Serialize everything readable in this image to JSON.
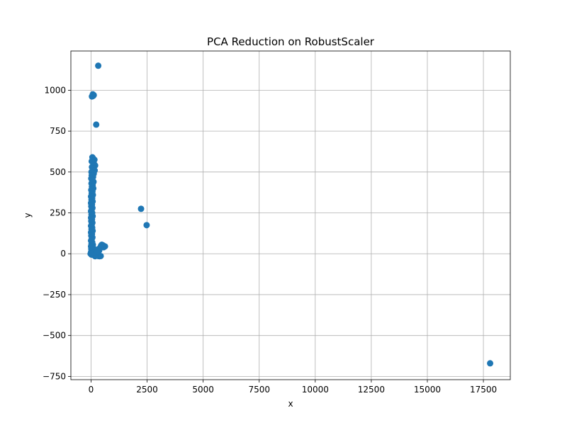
{
  "chart_data": {
    "type": "scatter",
    "title": "PCA Reduction on RobustScaler",
    "xlabel": "x",
    "ylabel": "y",
    "xlim": [
      -900,
      18700
    ],
    "ylim": [
      -770,
      1240
    ],
    "xticks": [
      0,
      2500,
      5000,
      7500,
      10000,
      12500,
      15000,
      17500
    ],
    "yticks": [
      -750,
      -500,
      -250,
      0,
      250,
      500,
      750,
      1000
    ],
    "xtick_labels": [
      "0",
      "2500",
      "5000",
      "7500",
      "10000",
      "12500",
      "15000",
      "17500"
    ],
    "ytick_labels": [
      "−750",
      "−500",
      "−250",
      "0",
      "250",
      "500",
      "750",
      "1000"
    ],
    "grid": true,
    "marker_color": "#1f77b4",
    "points": [
      {
        "x": 320,
        "y": 1150
      },
      {
        "x": 80,
        "y": 975
      },
      {
        "x": 120,
        "y": 970
      },
      {
        "x": 40,
        "y": 962
      },
      {
        "x": 90,
        "y": 965
      },
      {
        "x": 230,
        "y": 790
      },
      {
        "x": 60,
        "y": 590
      },
      {
        "x": 100,
        "y": 580
      },
      {
        "x": 150,
        "y": 575
      },
      {
        "x": 30,
        "y": 565
      },
      {
        "x": 80,
        "y": 560
      },
      {
        "x": 130,
        "y": 550
      },
      {
        "x": 180,
        "y": 540
      },
      {
        "x": 40,
        "y": 530
      },
      {
        "x": 100,
        "y": 520
      },
      {
        "x": 160,
        "y": 510
      },
      {
        "x": 20,
        "y": 500
      },
      {
        "x": 70,
        "y": 495
      },
      {
        "x": 120,
        "y": 490
      },
      {
        "x": 30,
        "y": 480
      },
      {
        "x": 90,
        "y": 470
      },
      {
        "x": 10,
        "y": 460
      },
      {
        "x": 60,
        "y": 450
      },
      {
        "x": 110,
        "y": 440
      },
      {
        "x": 20,
        "y": 430
      },
      {
        "x": 70,
        "y": 420
      },
      {
        "x": 40,
        "y": 410
      },
      {
        "x": 100,
        "y": 400
      },
      {
        "x": 10,
        "y": 390
      },
      {
        "x": 60,
        "y": 380
      },
      {
        "x": 30,
        "y": 370
      },
      {
        "x": 80,
        "y": 360
      },
      {
        "x": 0,
        "y": 350
      },
      {
        "x": 50,
        "y": 340
      },
      {
        "x": 20,
        "y": 330
      },
      {
        "x": 70,
        "y": 320
      },
      {
        "x": 0,
        "y": 310
      },
      {
        "x": 40,
        "y": 300
      },
      {
        "x": 10,
        "y": 290
      },
      {
        "x": 60,
        "y": 280
      },
      {
        "x": 30,
        "y": 270
      },
      {
        "x": 0,
        "y": 260
      },
      {
        "x": 50,
        "y": 250
      },
      {
        "x": 20,
        "y": 240
      },
      {
        "x": 70,
        "y": 230
      },
      {
        "x": 0,
        "y": 220
      },
      {
        "x": 40,
        "y": 210
      },
      {
        "x": 10,
        "y": 200
      },
      {
        "x": 60,
        "y": 190
      },
      {
        "x": 30,
        "y": 180
      },
      {
        "x": 0,
        "y": 170
      },
      {
        "x": 50,
        "y": 160
      },
      {
        "x": 20,
        "y": 150
      },
      {
        "x": 70,
        "y": 140
      },
      {
        "x": 0,
        "y": 130
      },
      {
        "x": 40,
        "y": 120
      },
      {
        "x": 10,
        "y": 110
      },
      {
        "x": 60,
        "y": 100
      },
      {
        "x": 30,
        "y": 90
      },
      {
        "x": 0,
        "y": 80
      },
      {
        "x": 50,
        "y": 70
      },
      {
        "x": 20,
        "y": 60
      },
      {
        "x": 80,
        "y": 55
      },
      {
        "x": 0,
        "y": 45
      },
      {
        "x": 40,
        "y": 40
      },
      {
        "x": 100,
        "y": 35
      },
      {
        "x": 10,
        "y": 30
      },
      {
        "x": 60,
        "y": 25
      },
      {
        "x": 130,
        "y": 20
      },
      {
        "x": 30,
        "y": 15
      },
      {
        "x": 0,
        "y": 10
      },
      {
        "x": 90,
        "y": 5
      },
      {
        "x": 50,
        "y": 0
      },
      {
        "x": 150,
        "y": -2
      },
      {
        "x": 20,
        "y": -5
      },
      {
        "x": 110,
        "y": -8
      },
      {
        "x": 200,
        "y": -10
      },
      {
        "x": 260,
        "y": -12
      },
      {
        "x": 320,
        "y": -14
      },
      {
        "x": 380,
        "y": -15
      },
      {
        "x": 430,
        "y": -14
      },
      {
        "x": 180,
        "y": -15
      },
      {
        "x": 240,
        "y": 5
      },
      {
        "x": 300,
        "y": 10
      },
      {
        "x": 360,
        "y": 20
      },
      {
        "x": 400,
        "y": 35
      },
      {
        "x": 450,
        "y": 50
      },
      {
        "x": 500,
        "y": 45
      },
      {
        "x": 560,
        "y": 40
      },
      {
        "x": 620,
        "y": 45
      },
      {
        "x": 480,
        "y": 55
      },
      {
        "x": 530,
        "y": 52
      },
      {
        "x": 430,
        "y": 42
      },
      {
        "x": 350,
        "y": 30
      },
      {
        "x": 280,
        "y": 15
      },
      {
        "x": -20,
        "y": 0
      },
      {
        "x": 2230,
        "y": 275
      },
      {
        "x": 2480,
        "y": 175
      },
      {
        "x": 17800,
        "y": -670
      }
    ]
  }
}
